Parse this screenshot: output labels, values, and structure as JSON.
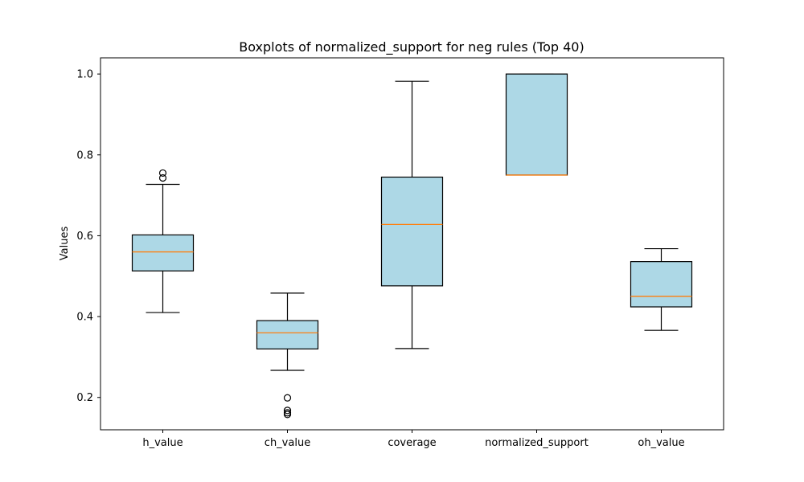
{
  "chart_data": {
    "type": "boxplot",
    "title": "Boxplots of normalized_support for neg rules (Top 40)",
    "xlabel": "",
    "ylabel": "Values",
    "ylim": [
      0.12,
      1.04
    ],
    "yticks": [
      0.2,
      0.4,
      0.6,
      0.8,
      1.0
    ],
    "ytick_labels": [
      "0.2",
      "0.4",
      "0.6",
      "0.8",
      "1.0"
    ],
    "grid": false,
    "colors": {
      "box_fill": "#add8e6",
      "box_edge": "#000000",
      "median": "#ff7f0e",
      "outlier": "#000000"
    },
    "categories": [
      "h_value",
      "ch_value",
      "coverage",
      "normalized_support",
      "oh_value"
    ],
    "boxes": [
      {
        "name": "h_value",
        "whisker_low": 0.41,
        "q1": 0.513,
        "median": 0.56,
        "q3": 0.602,
        "whisker_high": 0.727,
        "outliers": [
          0.743,
          0.755
        ]
      },
      {
        "name": "ch_value",
        "whisker_low": 0.267,
        "q1": 0.32,
        "median": 0.36,
        "q3": 0.39,
        "whisker_high": 0.458,
        "outliers": [
          0.199,
          0.168,
          0.162,
          0.158
        ]
      },
      {
        "name": "coverage",
        "whisker_low": 0.321,
        "q1": 0.476,
        "median": 0.628,
        "q3": 0.745,
        "whisker_high": 0.982,
        "outliers": []
      },
      {
        "name": "normalized_support",
        "whisker_low": 0.75,
        "q1": 0.75,
        "median": 0.75,
        "q3": 1.0,
        "whisker_high": 1.0,
        "outliers": []
      },
      {
        "name": "oh_value",
        "whisker_low": 0.366,
        "q1": 0.424,
        "median": 0.45,
        "q3": 0.536,
        "whisker_high": 0.568,
        "outliers": []
      }
    ]
  }
}
